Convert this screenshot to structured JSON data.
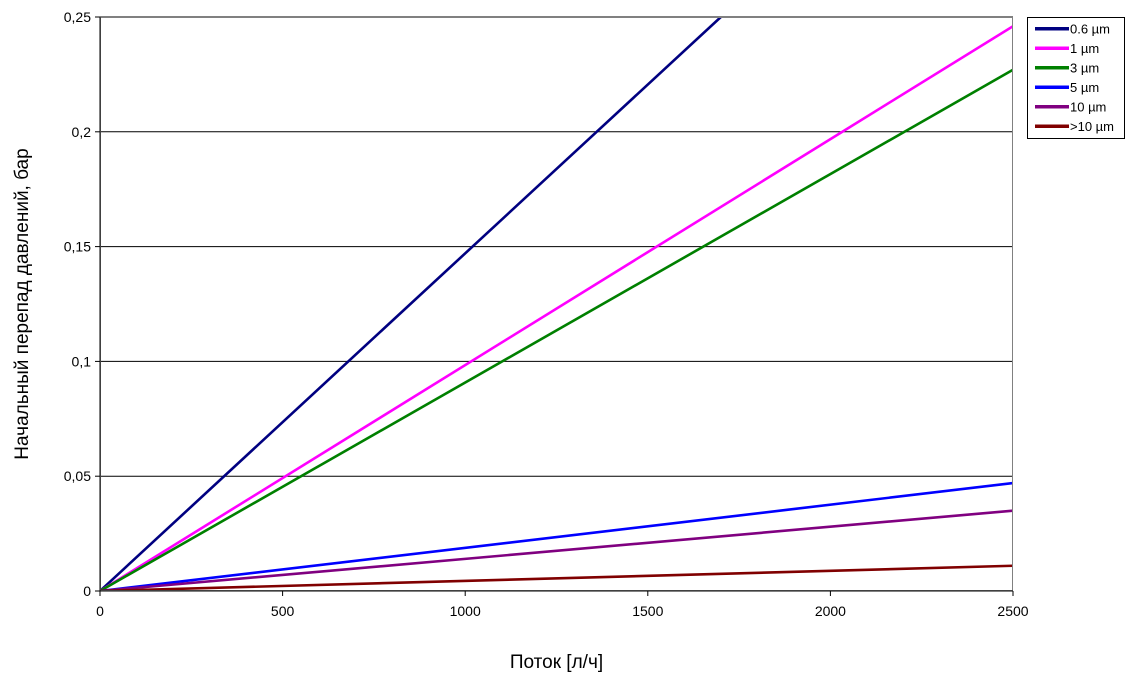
{
  "chart_data": {
    "type": "line",
    "title": "",
    "xlabel": "Поток [л/ч]",
    "ylabel": "Начальный перепад давлений, бар",
    "xlim": [
      0,
      2500
    ],
    "ylim": [
      0,
      0.25
    ],
    "x_ticks": [
      0,
      500,
      1000,
      1500,
      2000,
      2500
    ],
    "x_tick_labels": [
      "0",
      "500",
      "1000",
      "1500",
      "2000",
      "2500"
    ],
    "y_ticks": [
      0,
      0.05,
      0.1,
      0.15,
      0.2,
      0.25
    ],
    "y_tick_labels": [
      "0",
      "0,05",
      "0,1",
      "0,15",
      "0,2",
      "0,25"
    ],
    "grid": "horizontal",
    "legend_position": "top-right",
    "series": [
      {
        "name": "0.6 µm",
        "color": "#000080",
        "x": [
          0,
          1700
        ],
        "y": [
          0,
          0.25
        ]
      },
      {
        "name": "1 µm",
        "color": "#ff00ff",
        "x": [
          0,
          2500
        ],
        "y": [
          0,
          0.246
        ]
      },
      {
        "name": "3 µm",
        "color": "#008000",
        "x": [
          0,
          2500
        ],
        "y": [
          0,
          0.227
        ]
      },
      {
        "name": "5 µm",
        "color": "#0000ff",
        "x": [
          0,
          2500
        ],
        "y": [
          0,
          0.047
        ]
      },
      {
        "name": "10 µm",
        "color": "#800080",
        "x": [
          0,
          2500
        ],
        "y": [
          0,
          0.035
        ]
      },
      {
        "name": ">10 µm",
        "color": "#800000",
        "x": [
          0,
          2500
        ],
        "y": [
          0,
          0.011
        ]
      }
    ]
  }
}
